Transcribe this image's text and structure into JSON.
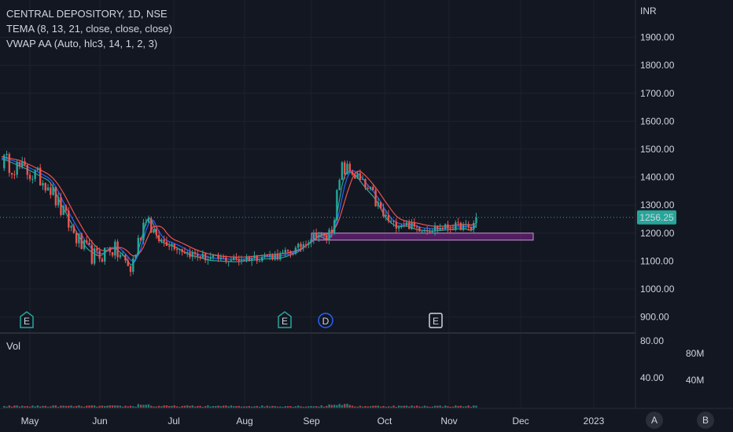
{
  "legend": {
    "symbol": "CENTRAL DEPOSITORY, 1D, NSE",
    "tema": "TEMA (8, 13, 21, close, close, close)",
    "vwap": "VWAP AA (Auto, hlc3, 14, 1, 2, 3)"
  },
  "currency": "INR",
  "volume_label": "Vol",
  "footer_buttons": {
    "a": "A",
    "b": "B"
  },
  "colors": {
    "background": "#131722",
    "up": "#26a69a",
    "down": "#ef5350",
    "tema_fast": "#26a69a",
    "tema_mid": "#2962ff",
    "tema_slow": "#ef5350",
    "zone_fill": "#9c27b0",
    "price_badge": "#26a69a"
  },
  "event_markers": [
    {
      "label": "E",
      "month": "May",
      "style": "earnings"
    },
    {
      "label": "E",
      "month": "Aug",
      "style": "earnings"
    },
    {
      "label": "D",
      "month": "Sep",
      "style": "dividend"
    },
    {
      "label": "E",
      "month": "Oct",
      "style": "earnings-past"
    }
  ],
  "chart_data": [
    {
      "type": "candlestick",
      "title": "CENTRAL DEPOSITORY, 1D, NSE",
      "x_ticks": [
        "May",
        "Jun",
        "Jul",
        "Aug",
        "Sep",
        "Oct",
        "Nov",
        "Dec",
        "2023"
      ],
      "y_ticks": [
        "900.00",
        "1000.00",
        "1100.00",
        "1200.00",
        "1300.00",
        "1400.00",
        "1500.00",
        "1600.00",
        "1700.00",
        "1800.00",
        "1900.00"
      ],
      "ylim": [
        860,
        2000
      ],
      "last_price": "1256.25",
      "zone": {
        "from": "Sep",
        "to": "Dec",
        "low": 1175,
        "high": 1200
      },
      "path": [
        [
          0,
          1460
        ],
        [
          10,
          1420
        ],
        [
          18,
          1380
        ],
        [
          22,
          1300
        ],
        [
          28,
          1200
        ],
        [
          32,
          1140
        ],
        [
          37,
          1110
        ],
        [
          42,
          1150
        ],
        [
          46,
          1120
        ],
        [
          50,
          1070
        ],
        [
          54,
          1200
        ],
        [
          56,
          1270
        ],
        [
          60,
          1180
        ],
        [
          66,
          1160
        ],
        [
          72,
          1130
        ],
        [
          80,
          1110
        ],
        [
          90,
          1105
        ],
        [
          100,
          1115
        ],
        [
          108,
          1120
        ],
        [
          114,
          1140
        ],
        [
          118,
          1170
        ],
        [
          122,
          1200
        ],
        [
          126,
          1180
        ],
        [
          128,
          1220
        ],
        [
          130,
          1330
        ],
        [
          132,
          1430
        ],
        [
          136,
          1420
        ],
        [
          140,
          1370
        ],
        [
          144,
          1330
        ],
        [
          148,
          1260
        ],
        [
          152,
          1230
        ],
        [
          156,
          1235
        ],
        [
          160,
          1220
        ],
        [
          166,
          1215
        ],
        [
          172,
          1220
        ],
        [
          178,
          1225
        ],
        [
          182,
          1215
        ],
        [
          184,
          1256
        ]
      ],
      "series": [
        {
          "name": "TEMA 8",
          "offset": 8,
          "lag": 2
        },
        {
          "name": "TEMA 13",
          "offset": 18,
          "lag": 4
        },
        {
          "name": "TEMA 21",
          "offset": 28,
          "lag": 7
        }
      ]
    },
    {
      "type": "bar",
      "name": "Vol",
      "y_ticks": [
        "40.00",
        "80.00"
      ],
      "right_ticks": [
        "40M",
        "80M"
      ]
    }
  ]
}
